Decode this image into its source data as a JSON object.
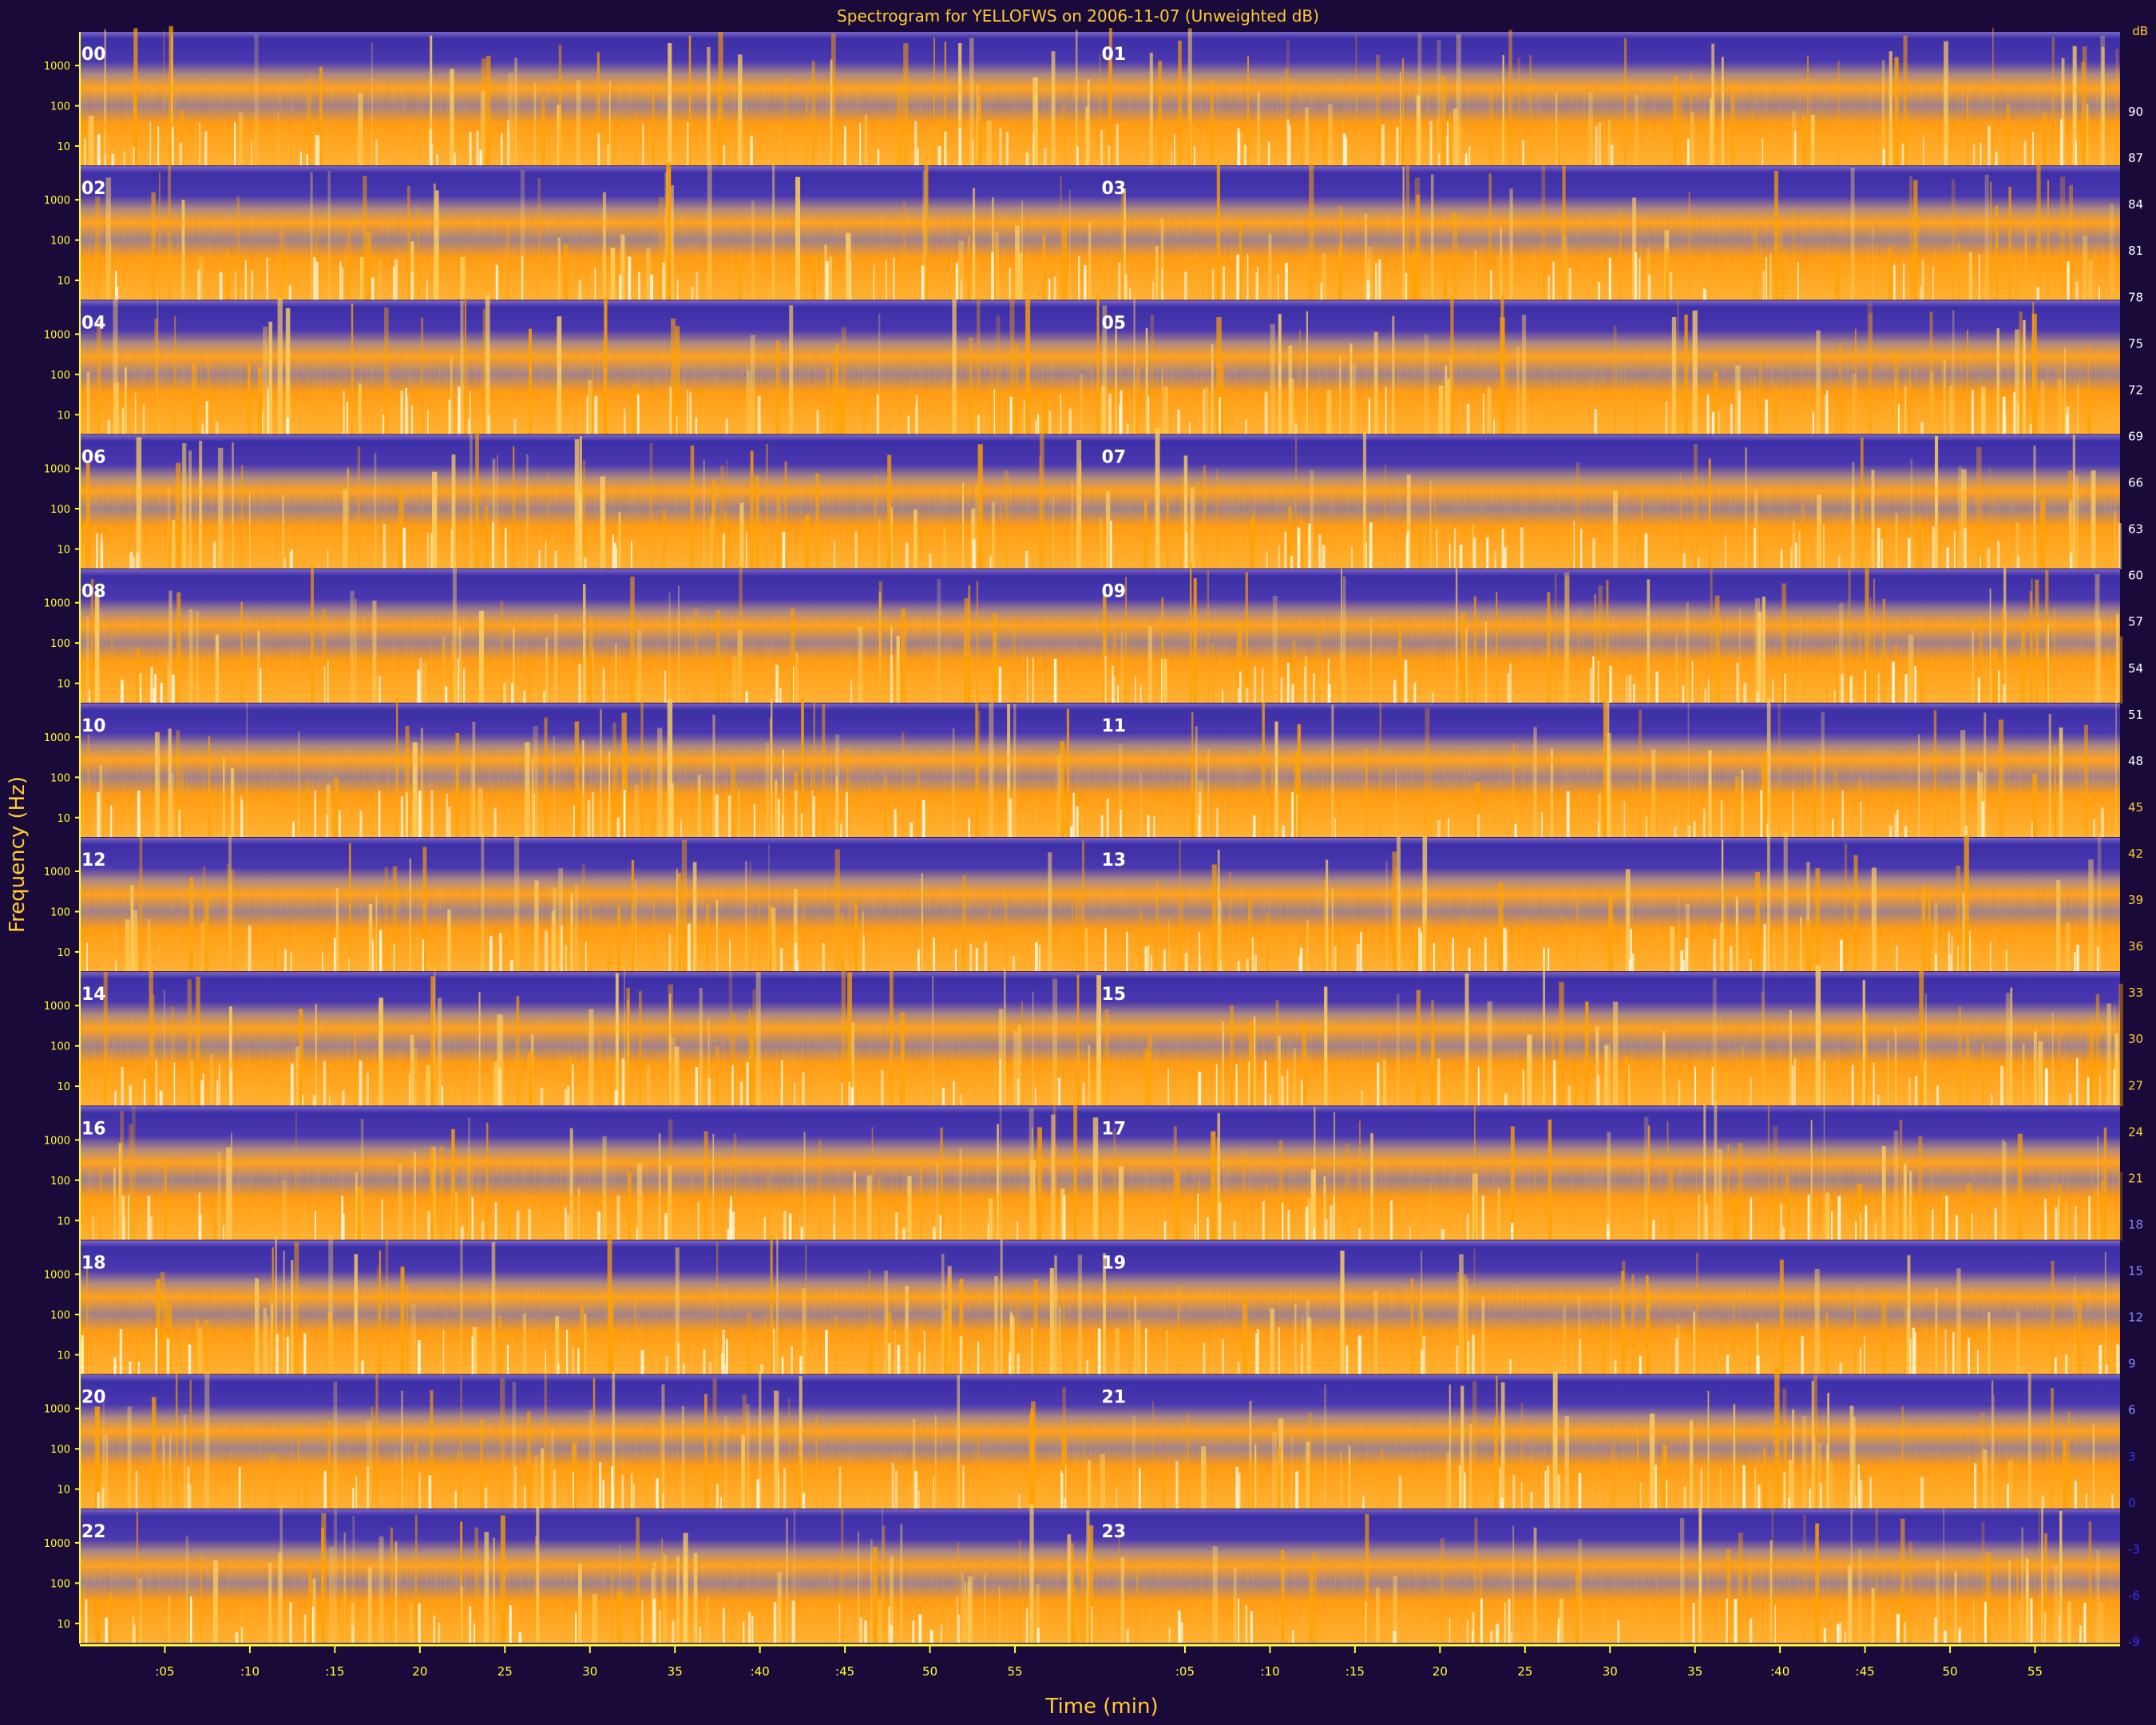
{
  "chart_data": {
    "type": "heatmap",
    "title": "Spectrogram for YELLOFWS on 2006-11-07 (Unweighted dB)",
    "xlabel": "Time (min)",
    "ylabel": "Frequency (Hz)",
    "row_labels": [
      "00",
      "01",
      "02",
      "03",
      "04",
      "05",
      "06",
      "07",
      "08",
      "09",
      "10",
      "11",
      "12",
      "13",
      "14",
      "15",
      "16",
      "17",
      "18",
      "19",
      "20",
      "21",
      "22",
      "23"
    ],
    "y_tick_labels": [
      "1000",
      "100",
      "10"
    ],
    "x_tick_labels": [
      ":05",
      ":10",
      ":15",
      "20",
      "25",
      "30",
      "35",
      ":40",
      ":45",
      "50",
      "55"
    ],
    "colorbar": {
      "unit": "dB",
      "ticks": [
        90,
        87,
        84,
        81,
        78,
        75,
        72,
        69,
        66,
        63,
        60,
        57,
        54,
        51,
        48,
        45,
        42,
        39,
        36,
        33,
        30,
        27,
        24,
        21,
        18,
        15,
        12,
        9,
        6,
        3,
        0,
        -3,
        -6,
        -9
      ],
      "range": [
        -9,
        93
      ]
    },
    "colormap": {
      "low": "#3d2fa6",
      "mid": "#ff9900",
      "high": "#fffbe0"
    },
    "grid": false
  },
  "colors": {
    "background": "#1a0a3a",
    "axis_text": "#ffff33",
    "title_text": "#ffcc33",
    "row_label": "#ffffff",
    "colorbar_low": "#3333ff"
  }
}
